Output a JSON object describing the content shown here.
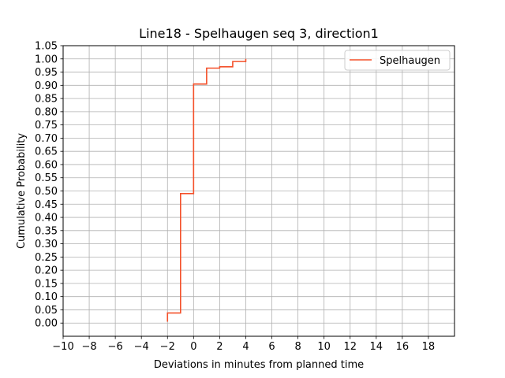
{
  "chart_data": {
    "type": "line",
    "title": "Line18 - Spelhaugen seq 3, direction1",
    "xlabel": "Deviations in minutes from planned time",
    "ylabel": "Cumulative Probability",
    "xlim": [
      -10,
      20
    ],
    "ylim": [
      -0.05,
      1.05
    ],
    "xticks": [
      -10,
      -8,
      -6,
      -4,
      -2,
      0,
      2,
      4,
      6,
      8,
      10,
      12,
      14,
      16,
      18
    ],
    "xtick_labels": [
      "−10",
      "−8",
      "−6",
      "−4",
      "−2",
      "0",
      "2",
      "4",
      "6",
      "8",
      "10",
      "12",
      "14",
      "16",
      "18"
    ],
    "yticks": [
      0.0,
      0.05,
      0.1,
      0.15,
      0.2,
      0.25,
      0.3,
      0.35,
      0.4,
      0.45,
      0.5,
      0.55,
      0.6,
      0.65,
      0.7,
      0.75,
      0.8,
      0.85,
      0.9,
      0.95,
      1.0,
      1.05
    ],
    "ytick_labels": [
      "0.00",
      "0.05",
      "0.10",
      "0.15",
      "0.20",
      "0.25",
      "0.30",
      "0.35",
      "0.40",
      "0.45",
      "0.50",
      "0.55",
      "0.60",
      "0.65",
      "0.70",
      "0.75",
      "0.80",
      "0.85",
      "0.90",
      "0.95",
      "1.00",
      "1.05"
    ],
    "grid": true,
    "legend_position": "top-right",
    "series": [
      {
        "name": "Spelhaugen",
        "color": "#f4502a",
        "step": true,
        "x": [
          -2,
          -2,
          -1,
          -1,
          0,
          0,
          1,
          1,
          2,
          2,
          3,
          3,
          4,
          4
        ],
        "y": [
          0.005,
          0.038,
          0.038,
          0.49,
          0.49,
          0.905,
          0.905,
          0.965,
          0.965,
          0.97,
          0.97,
          0.99,
          0.99,
          1.0
        ]
      }
    ]
  }
}
